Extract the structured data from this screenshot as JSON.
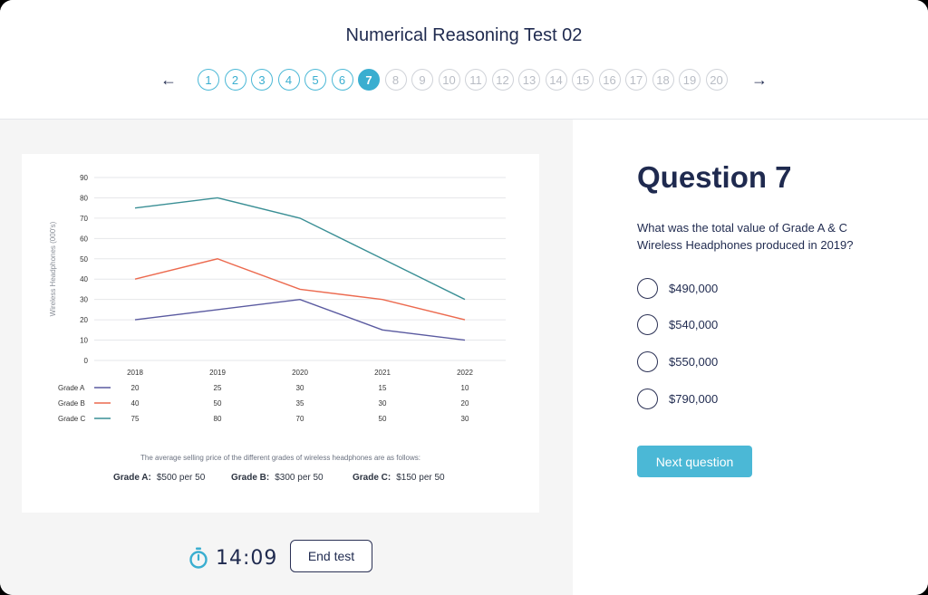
{
  "header": {
    "title": "Numerical Reasoning Test 02",
    "prev_icon": "arrow-left-icon",
    "next_icon": "arrow-right-icon",
    "pages": [
      "1",
      "2",
      "3",
      "4",
      "5",
      "6",
      "7",
      "8",
      "9",
      "10",
      "11",
      "12",
      "13",
      "14",
      "15",
      "16",
      "17",
      "18",
      "19",
      "20"
    ],
    "current_page": 7
  },
  "chart_data": {
    "type": "line",
    "ylabel": "Wireless Headphones (000's)",
    "ylim": [
      0,
      90
    ],
    "yticks": [
      "0",
      "10",
      "20",
      "30",
      "40",
      "50",
      "60",
      "70",
      "80",
      "90"
    ],
    "categories": [
      "2018",
      "2019",
      "2020",
      "2021",
      "2022"
    ],
    "grid": true,
    "series": [
      {
        "name": "Grade A",
        "values": [
          20,
          25,
          30,
          15,
          10
        ],
        "color": "#5a5aa0"
      },
      {
        "name": "Grade B",
        "values": [
          40,
          50,
          35,
          30,
          20
        ],
        "color": "#ec6a4f"
      },
      {
        "name": "Grade C",
        "values": [
          75,
          80,
          70,
          50,
          30
        ],
        "color": "#3a8f95"
      }
    ],
    "table_values": [
      [
        "20",
        "25",
        "30",
        "15",
        "10"
      ],
      [
        "40",
        "50",
        "35",
        "30",
        "20"
      ],
      [
        "75",
        "80",
        "70",
        "50",
        "30"
      ]
    ]
  },
  "pricing": {
    "note": "The average selling price of the different grades of wireless headphones are as follows:",
    "items": [
      {
        "grade": "Grade A:",
        "price": "$500 per 50"
      },
      {
        "grade": "Grade B:",
        "price": "$300 per 50"
      },
      {
        "grade": "Grade C:",
        "price": "$150 per 50"
      }
    ]
  },
  "timer": {
    "icon": "stopwatch-icon",
    "value": "14:09",
    "color": "#3aaed0"
  },
  "end_test_label": "End test",
  "question": {
    "title": "Question 7",
    "text": "What was the total value of Grade A & C Wireless Headphones produced in 2019?",
    "options": [
      "$490,000",
      "$540,000",
      "$550,000",
      "$790,000"
    ],
    "next_label": "Next question"
  },
  "colors": {
    "accent": "#4bb8d6",
    "navy": "#1f2a4f"
  }
}
